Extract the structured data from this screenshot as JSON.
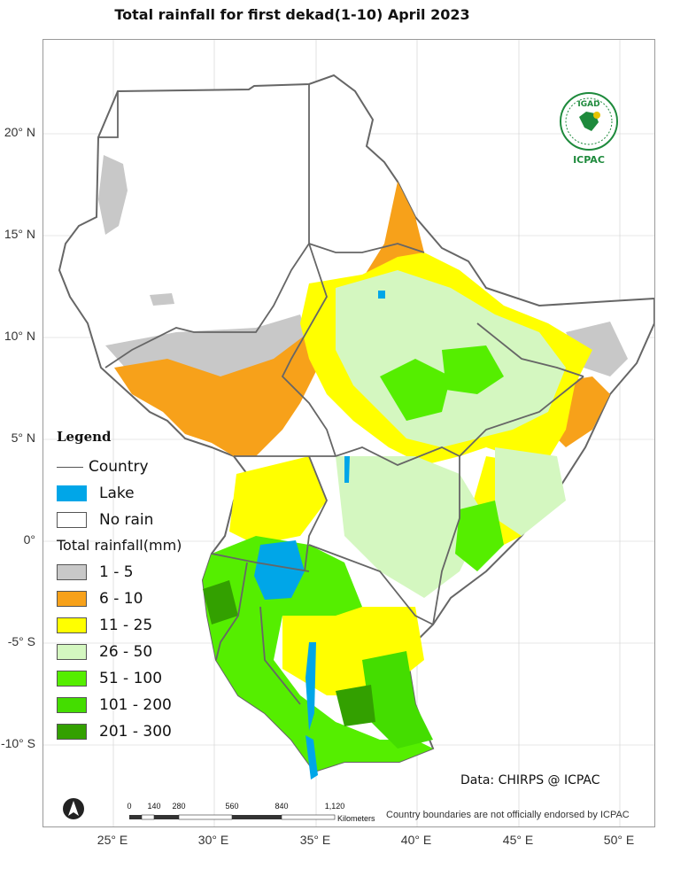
{
  "title": "Total rainfall  for  first dekad(1-10) April 2023",
  "lat_labels": [
    "20° N",
    "15° N",
    "10° N",
    "5° N",
    "0°",
    "-5° S",
    "-10° S"
  ],
  "lon_labels": [
    "25° E",
    "30° E",
    "35° E",
    "40° E",
    "45° E",
    "50° E"
  ],
  "legend": {
    "title": "Legend",
    "country": "Country",
    "lake": "Lake",
    "no_rain": "No rain",
    "rainfall_title": "Total rainfall(mm)",
    "classes": [
      {
        "label": "1 - 5",
        "color": "#c8c8c8"
      },
      {
        "label": "6 - 10",
        "color": "#f7a11a"
      },
      {
        "label": "11 - 25",
        "color": "#ffff00"
      },
      {
        "label": "26 - 50",
        "color": "#d4f7c0"
      },
      {
        "label": "51 - 100",
        "color": "#55ee00"
      },
      {
        "label": "101 - 200",
        "color": "#44dd00"
      },
      {
        "label": "201 - 300",
        "color": "#33a000"
      }
    ],
    "lake_color": "#00a6e8"
  },
  "credit": "Data: CHIRPS @ ICPAC",
  "disclaimer": "Country boundaries are not officially endorsed by ICPAC",
  "scale_bar": {
    "labels": [
      "0",
      "140",
      "280",
      "560",
      "840",
      "1,120"
    ],
    "unit": "Kilometers"
  },
  "logo": {
    "top_text": "IGAD",
    "bottom_text": "ICPAC"
  }
}
